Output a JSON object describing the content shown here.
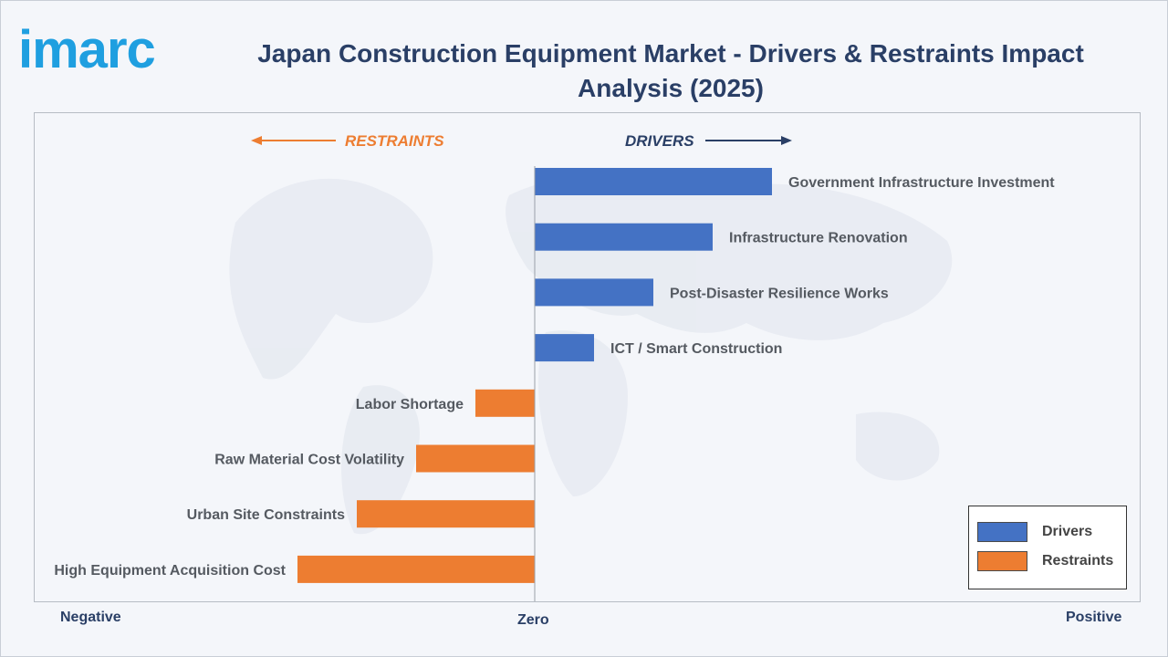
{
  "brand": {
    "logo_text": "imarc",
    "logo_color": "#1f9fe0"
  },
  "title": "Japan Construction Equipment Market - Drivers & Restraints Impact Analysis (2025)",
  "axis": {
    "negative": "Negative",
    "zero": "Zero",
    "positive": "Positive"
  },
  "direction": {
    "restraints": "RESTRAINTS",
    "drivers": "DRIVERS"
  },
  "legend": [
    {
      "label": "Drivers",
      "color": "#4472c4"
    },
    {
      "label": "Restraints",
      "color": "#ed7d31"
    }
  ],
  "chart_data": {
    "type": "bar",
    "orientation": "horizontal-diverging",
    "title": "Japan Construction Equipment Market - Drivers & Restraints Impact Analysis (2025)",
    "xlim": [
      -4.2,
      5
    ],
    "categories": [
      "Government Infrastructure Investment",
      "Infrastructure Renovation",
      "Post-Disaster Resilience Works",
      "ICT / Smart Construction",
      "Labor Shortage",
      "Raw Material Cost Volatility",
      "Urban Site Constraints",
      "High Equipment Acquisition Cost"
    ],
    "values": [
      4,
      3,
      2,
      1,
      -1,
      -2,
      -3,
      -4
    ],
    "series": [
      {
        "name": "Drivers",
        "color": "#4472c4"
      },
      {
        "name": "Restraints",
        "color": "#ed7d31"
      }
    ],
    "legend_position": "bottom-right",
    "grid": false
  }
}
